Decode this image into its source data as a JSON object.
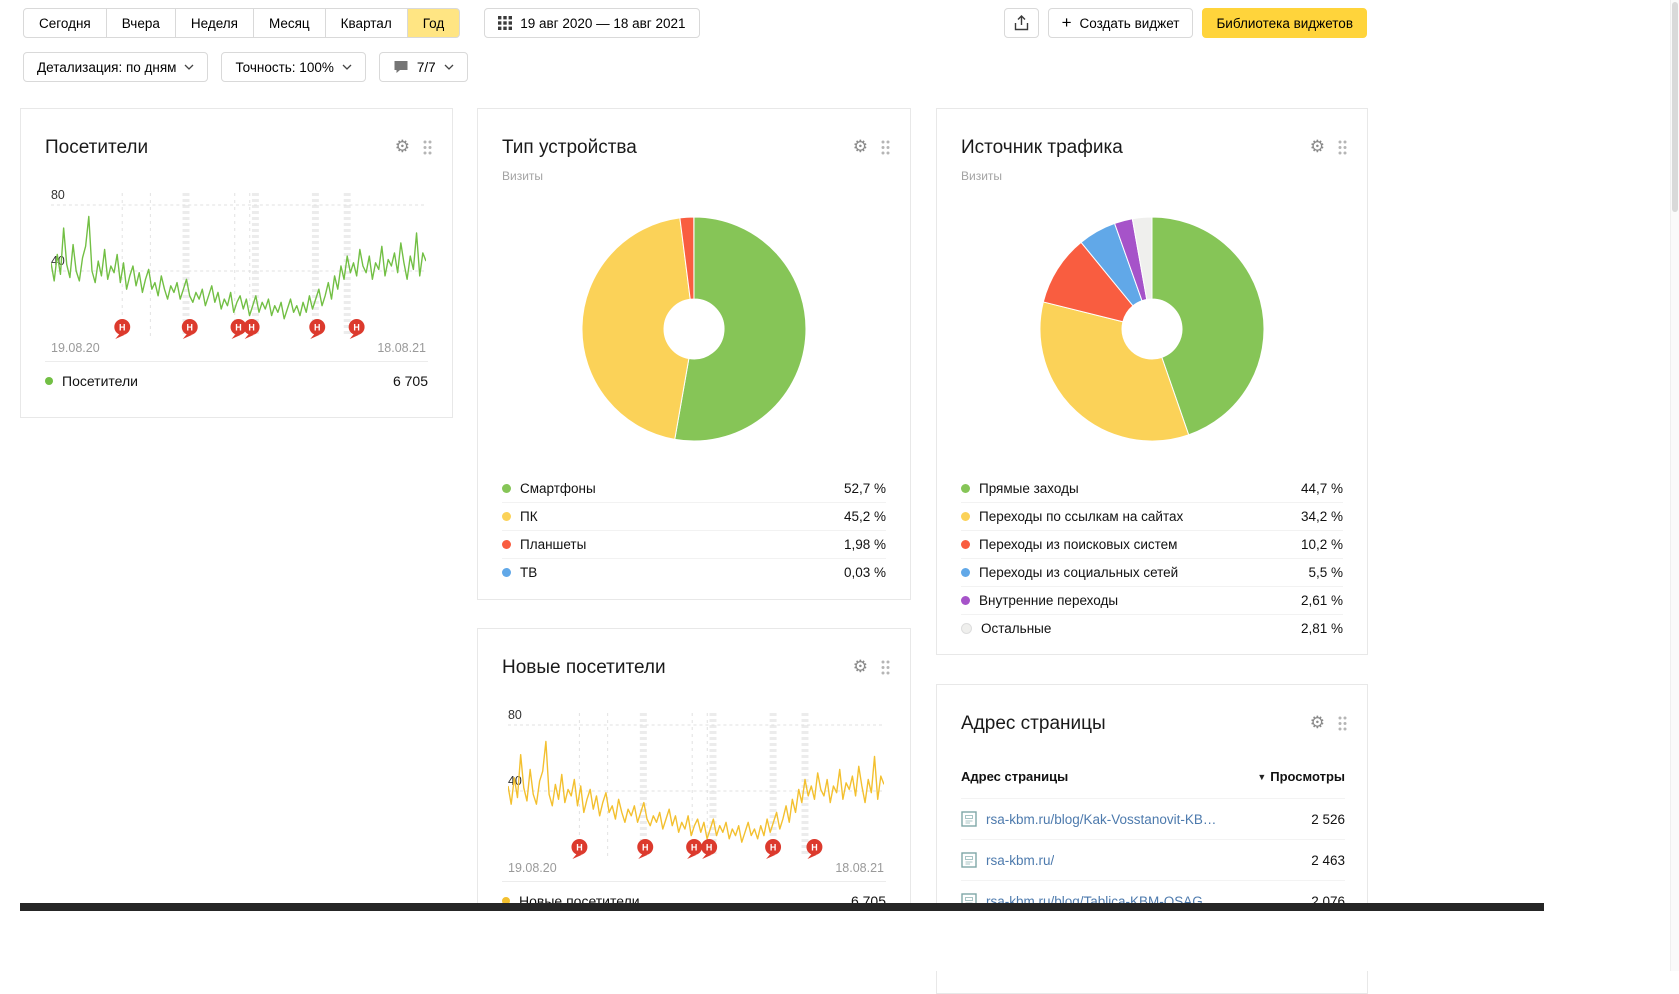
{
  "toolbar": {
    "periods": [
      "Сегодня",
      "Вчера",
      "Неделя",
      "Месяц",
      "Квартал",
      "Год"
    ],
    "selected_period": "Год",
    "date_range": "19 авг 2020 — 18 авг 2021",
    "create_widget_label": "Создать виджет",
    "library_label": "Библиотека виджетов",
    "detalization_label": "Детализация: по дням",
    "accuracy_label": "Точность: 100%",
    "comments_label": "7/7"
  },
  "icons": {
    "calendar": "calendar-grid-icon",
    "export": "export-icon",
    "plus": "plus-icon",
    "chevron": "chevron-down-icon",
    "comments": "speech-bubble-icon",
    "settings": "gear-icon",
    "drag": "drag-handle-icon",
    "sort": "sort-desc-icon",
    "page": "page-icon",
    "annotation": "annotation-marker-icon"
  },
  "widgets": {
    "visitors": {
      "title": "Посетители",
      "x_start": "19.08.20",
      "x_end": "18.08.21",
      "legend_label": "Посетители",
      "legend_value": "6 705"
    },
    "device_type": {
      "title": "Тип устройства",
      "subtitle": "Визиты"
    },
    "traffic_source": {
      "title": "Источник трафика",
      "subtitle": "Визиты"
    },
    "new_visitors": {
      "title": "Новые посетители",
      "x_start": "19.08.20",
      "x_end": "18.08.21",
      "legend_label": "Новые посетители",
      "legend_value": "6 705"
    },
    "page_address": {
      "title": "Адрес страницы",
      "col_url": "Адрес страницы",
      "col_views": "Просмотры",
      "rows": [
        {
          "url": "rsa-kbm.ru/blog/Kak-Vosstanovit-KB…",
          "views": "2 526"
        },
        {
          "url": "rsa-kbm.ru/",
          "views": "2 463"
        },
        {
          "url": "rsa-kbm.ru/blog/Tablica-KBM-OSAG…",
          "views": "2 076"
        }
      ]
    }
  },
  "chart_data": [
    {
      "id": "visitors",
      "type": "line",
      "title": "Посетители",
      "color": "#72bf44",
      "marker_color": "#dc3a2d",
      "marker_label": "Н",
      "ylim": [
        0,
        80
      ],
      "y_ticks": [
        80,
        40
      ],
      "x_range": [
        "19.08.20",
        "18.08.21"
      ],
      "total": "6 705",
      "markers": [
        0.19,
        0.37,
        0.5,
        0.535,
        0.71,
        0.815
      ],
      "grid_bands": [
        0.36,
        0.545,
        0.705,
        0.79
      ],
      "grid_lines": [
        0.19,
        0.265,
        0.49,
        0.53
      ],
      "values": [
        45,
        34,
        50,
        38,
        66,
        44,
        36,
        56,
        40,
        34,
        48,
        55,
        73,
        40,
        33,
        46,
        37,
        53,
        35,
        43,
        39,
        50,
        33,
        45,
        29,
        37,
        43,
        31,
        39,
        27,
        35,
        41,
        29,
        33,
        25,
        37,
        29,
        23,
        31,
        27,
        33,
        23,
        29,
        35,
        25,
        21,
        27,
        23,
        29,
        19,
        25,
        31,
        21,
        27,
        17,
        23,
        19,
        27,
        15,
        21,
        25,
        17,
        23,
        13,
        19,
        25,
        15,
        21,
        17,
        23,
        13,
        19,
        15,
        21,
        11,
        17,
        23,
        15,
        19,
        13,
        21,
        15,
        25,
        17,
        23,
        29,
        19,
        25,
        33,
        23,
        37,
        29,
        43,
        35,
        49,
        39,
        45,
        37,
        53,
        43,
        39,
        49,
        35,
        45,
        41,
        55,
        37,
        47,
        43,
        51,
        39,
        57,
        45,
        35,
        49,
        41,
        63,
        37,
        51,
        46
      ]
    },
    {
      "id": "new_visitors",
      "type": "line",
      "title": "Новые посетители",
      "color": "#f3c02f",
      "marker_color": "#dc3a2d",
      "marker_label": "Н",
      "ylim": [
        0,
        80
      ],
      "y_ticks": [
        80,
        40
      ],
      "x_range": [
        "19.08.20",
        "18.08.21"
      ],
      "total": "6 705",
      "markers": [
        0.19,
        0.365,
        0.495,
        0.535,
        0.705,
        0.815
      ],
      "grid_bands": [
        0.36,
        0.545,
        0.705,
        0.79
      ],
      "grid_lines": [
        0.19,
        0.265,
        0.49,
        0.53
      ],
      "values": [
        43,
        32,
        48,
        36,
        62,
        42,
        34,
        53,
        38,
        32,
        46,
        52,
        70,
        38,
        31,
        44,
        35,
        50,
        33,
        41,
        37,
        47,
        31,
        43,
        27,
        35,
        41,
        29,
        37,
        25,
        33,
        39,
        27,
        31,
        23,
        35,
        27,
        21,
        29,
        25,
        31,
        21,
        27,
        33,
        23,
        19,
        25,
        21,
        27,
        17,
        23,
        29,
        19,
        25,
        15,
        21,
        17,
        25,
        13,
        19,
        23,
        15,
        21,
        11,
        17,
        23,
        13,
        19,
        15,
        21,
        11,
        17,
        13,
        19,
        9,
        15,
        21,
        13,
        17,
        11,
        19,
        13,
        23,
        15,
        21,
        27,
        17,
        23,
        31,
        21,
        35,
        27,
        41,
        33,
        47,
        37,
        43,
        35,
        51,
        41,
        37,
        47,
        33,
        43,
        39,
        53,
        35,
        45,
        41,
        49,
        37,
        55,
        43,
        33,
        47,
        39,
        61,
        35,
        49,
        44
      ]
    },
    {
      "id": "device_type",
      "type": "pie",
      "title": "Тип устройства",
      "subtitle": "Визиты",
      "slices": [
        {
          "label": "Смартфоны",
          "value": 52.7,
          "display": "52,7 %",
          "color": "#86c557"
        },
        {
          "label": "ПК",
          "value": 45.2,
          "display": "45,2 %",
          "color": "#fbd258"
        },
        {
          "label": "Планшеты",
          "value": 1.98,
          "display": "1,98 %",
          "color": "#f95d40"
        },
        {
          "label": "ТВ",
          "value": 0.03,
          "display": "0,03 %",
          "color": "#61a8e8"
        }
      ]
    },
    {
      "id": "traffic_source",
      "type": "pie",
      "title": "Источник трафика",
      "subtitle": "Визиты",
      "slices": [
        {
          "label": "Прямые заходы",
          "value": 44.7,
          "display": "44,7 %",
          "color": "#86c557"
        },
        {
          "label": "Переходы по ссылкам на сайтах",
          "value": 34.2,
          "display": "34,2 %",
          "color": "#fbd258"
        },
        {
          "label": "Переходы из поисковых систем",
          "value": 10.2,
          "display": "10,2 %",
          "color": "#f95d40"
        },
        {
          "label": "Переходы из социальных сетей",
          "value": 5.5,
          "display": "5,5 %",
          "color": "#61a8e8"
        },
        {
          "label": "Внутренние переходы",
          "value": 2.61,
          "display": "2,61 %",
          "color": "#a653c9"
        },
        {
          "label": "Остальные",
          "value": 2.81,
          "display": "2,81 %",
          "color": "#efefed",
          "border": true
        }
      ]
    }
  ]
}
